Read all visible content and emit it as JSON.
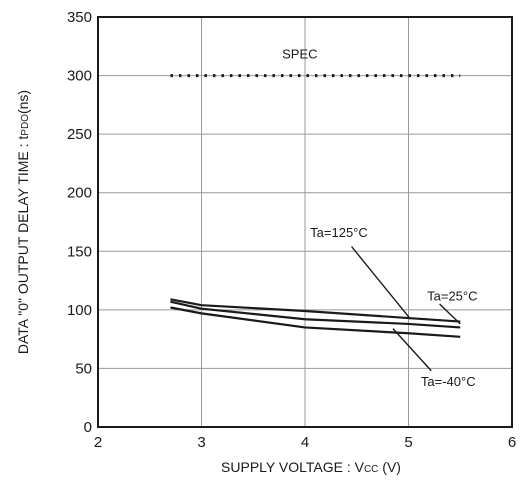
{
  "chart_data": {
    "type": "line",
    "title": "",
    "xlabel": "SUPPLY VOLTAGE : V",
    "xlabel_sub": "CC",
    "xlabel_suffix": " (V)",
    "ylabel": "DATA \"0\" OUTPUT DELAY TIME : t",
    "ylabel_sub": "PDO",
    "ylabel_suffix": "(ns)",
    "xlim": [
      2,
      6
    ],
    "ylim": [
      0,
      350
    ],
    "x_ticks": [
      "2",
      "3",
      "4",
      "5",
      "6"
    ],
    "y_ticks": [
      "0",
      "50",
      "100",
      "150",
      "200",
      "250",
      "300",
      "350"
    ],
    "grid": true,
    "spec": {
      "label": "SPEC",
      "value": 300,
      "x_range": [
        2.7,
        5.5
      ]
    },
    "series": [
      {
        "name": "Ta=125°C",
        "x": [
          2.7,
          3,
          4,
          5,
          5.5
        ],
        "y": [
          109,
          104,
          99,
          93,
          90
        ]
      },
      {
        "name": "Ta=25°C",
        "x": [
          2.7,
          3,
          4,
          5,
          5.5
        ],
        "y": [
          107,
          101,
          92,
          88,
          85
        ]
      },
      {
        "name": "Ta=-40°C",
        "x": [
          2.7,
          3,
          4,
          5,
          5.5
        ],
        "y": [
          102,
          97,
          85,
          80,
          77
        ]
      }
    ]
  }
}
